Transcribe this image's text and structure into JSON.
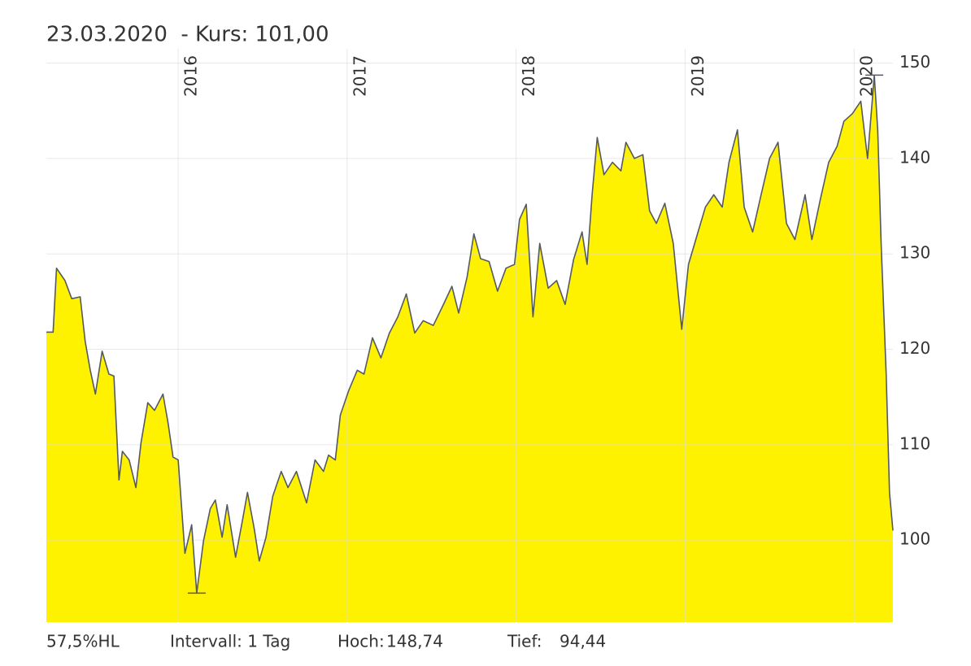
{
  "chart_data": {
    "type": "area",
    "title": "23.03.2020  - Kurs: 101,00",
    "x": [
      2015.22,
      2015.26,
      2015.28,
      2015.33,
      2015.37,
      2015.42,
      2015.45,
      2015.48,
      2015.51,
      2015.55,
      2015.59,
      2015.62,
      2015.65,
      2015.67,
      2015.71,
      2015.75,
      2015.78,
      2015.82,
      2015.86,
      2015.91,
      2015.94,
      2015.97,
      2016.0,
      2016.04,
      2016.08,
      2016.11,
      2016.15,
      2016.19,
      2016.22,
      2016.26,
      2016.29,
      2016.34,
      2016.38,
      2016.41,
      2016.45,
      2016.48,
      2016.52,
      2016.56,
      2016.61,
      2016.65,
      2016.7,
      2016.76,
      2016.81,
      2016.86,
      2016.89,
      2016.93,
      2016.96,
      2017.01,
      2017.06,
      2017.1,
      2017.15,
      2017.2,
      2017.25,
      2017.3,
      2017.35,
      2017.4,
      2017.45,
      2017.51,
      2017.57,
      2017.62,
      2017.66,
      2017.71,
      2017.75,
      2017.79,
      2017.84,
      2017.89,
      2017.94,
      2017.99,
      2018.02,
      2018.06,
      2018.1,
      2018.14,
      2018.19,
      2018.24,
      2018.29,
      2018.34,
      2018.39,
      2018.42,
      2018.45,
      2018.48,
      2018.52,
      2018.57,
      2018.62,
      2018.65,
      2018.7,
      2018.75,
      2018.79,
      2018.83,
      2018.88,
      2018.93,
      2018.98,
      2019.02,
      2019.07,
      2019.12,
      2019.17,
      2019.22,
      2019.26,
      2019.31,
      2019.35,
      2019.4,
      2019.45,
      2019.5,
      2019.55,
      2019.6,
      2019.65,
      2019.71,
      2019.75,
      2019.8,
      2019.85,
      2019.9,
      2019.94,
      2019.99,
      2020.04,
      2020.08,
      2020.12,
      2020.14,
      2020.16,
      2020.19,
      2020.21,
      2020.23
    ],
    "series": [
      {
        "color": "#fff200",
        "line_color": "#555a60",
        "values": [
          121.8,
          121.8,
          128.5,
          127.2,
          125.3,
          125.5,
          120.8,
          117.8,
          115.3,
          119.8,
          117.4,
          117.2,
          106.3,
          109.3,
          108.4,
          105.5,
          110.2,
          114.4,
          113.6,
          115.3,
          112.3,
          108.7,
          108.4,
          98.6,
          101.6,
          94.44,
          99.9,
          103.3,
          104.2,
          100.3,
          103.7,
          98.2,
          102.0,
          105.0,
          101.2,
          97.8,
          100.3,
          104.6,
          107.2,
          105.5,
          107.2,
          103.9,
          108.4,
          107.2,
          108.9,
          108.4,
          113.1,
          115.7,
          117.8,
          117.4,
          121.2,
          119.1,
          121.7,
          123.4,
          125.8,
          121.7,
          123.0,
          122.5,
          124.7,
          126.6,
          123.8,
          127.6,
          132.1,
          129.5,
          129.2,
          126.1,
          128.5,
          128.9,
          133.6,
          135.2,
          123.4,
          131.1,
          126.4,
          127.2,
          124.7,
          129.4,
          132.3,
          128.9,
          136.2,
          142.2,
          138.3,
          139.6,
          138.7,
          141.7,
          140.0,
          140.4,
          134.5,
          133.2,
          135.3,
          131.1,
          122.1,
          128.9,
          131.9,
          134.9,
          136.2,
          134.9,
          139.6,
          143.0,
          134.9,
          132.3,
          136.2,
          140.0,
          141.7,
          133.2,
          131.5,
          136.2,
          131.5,
          135.7,
          139.6,
          141.3,
          143.9,
          144.7,
          146.0,
          140.0,
          148.74,
          143.0,
          131.1,
          117.4,
          105.0,
          101.0
        ]
      }
    ],
    "xlim": [
      2015.22,
      2020.23
    ],
    "xticks": [
      2016,
      2017,
      2018,
      2019,
      2020
    ],
    "ylim": [
      91.4,
      151.5
    ],
    "yticks": [
      100,
      110,
      120,
      130,
      140,
      150
    ],
    "grid": true,
    "footer": [
      "57,5%HL",
      "Intervall: 1 Tag"
    ],
    "high": {
      "label": "Hoch:",
      "value": 148.74,
      "value_label": "148,74",
      "x": 2020.12
    },
    "low": {
      "label": "Tief:",
      "value": 94.44,
      "value_label": "94,44",
      "x": 2016.11
    }
  }
}
